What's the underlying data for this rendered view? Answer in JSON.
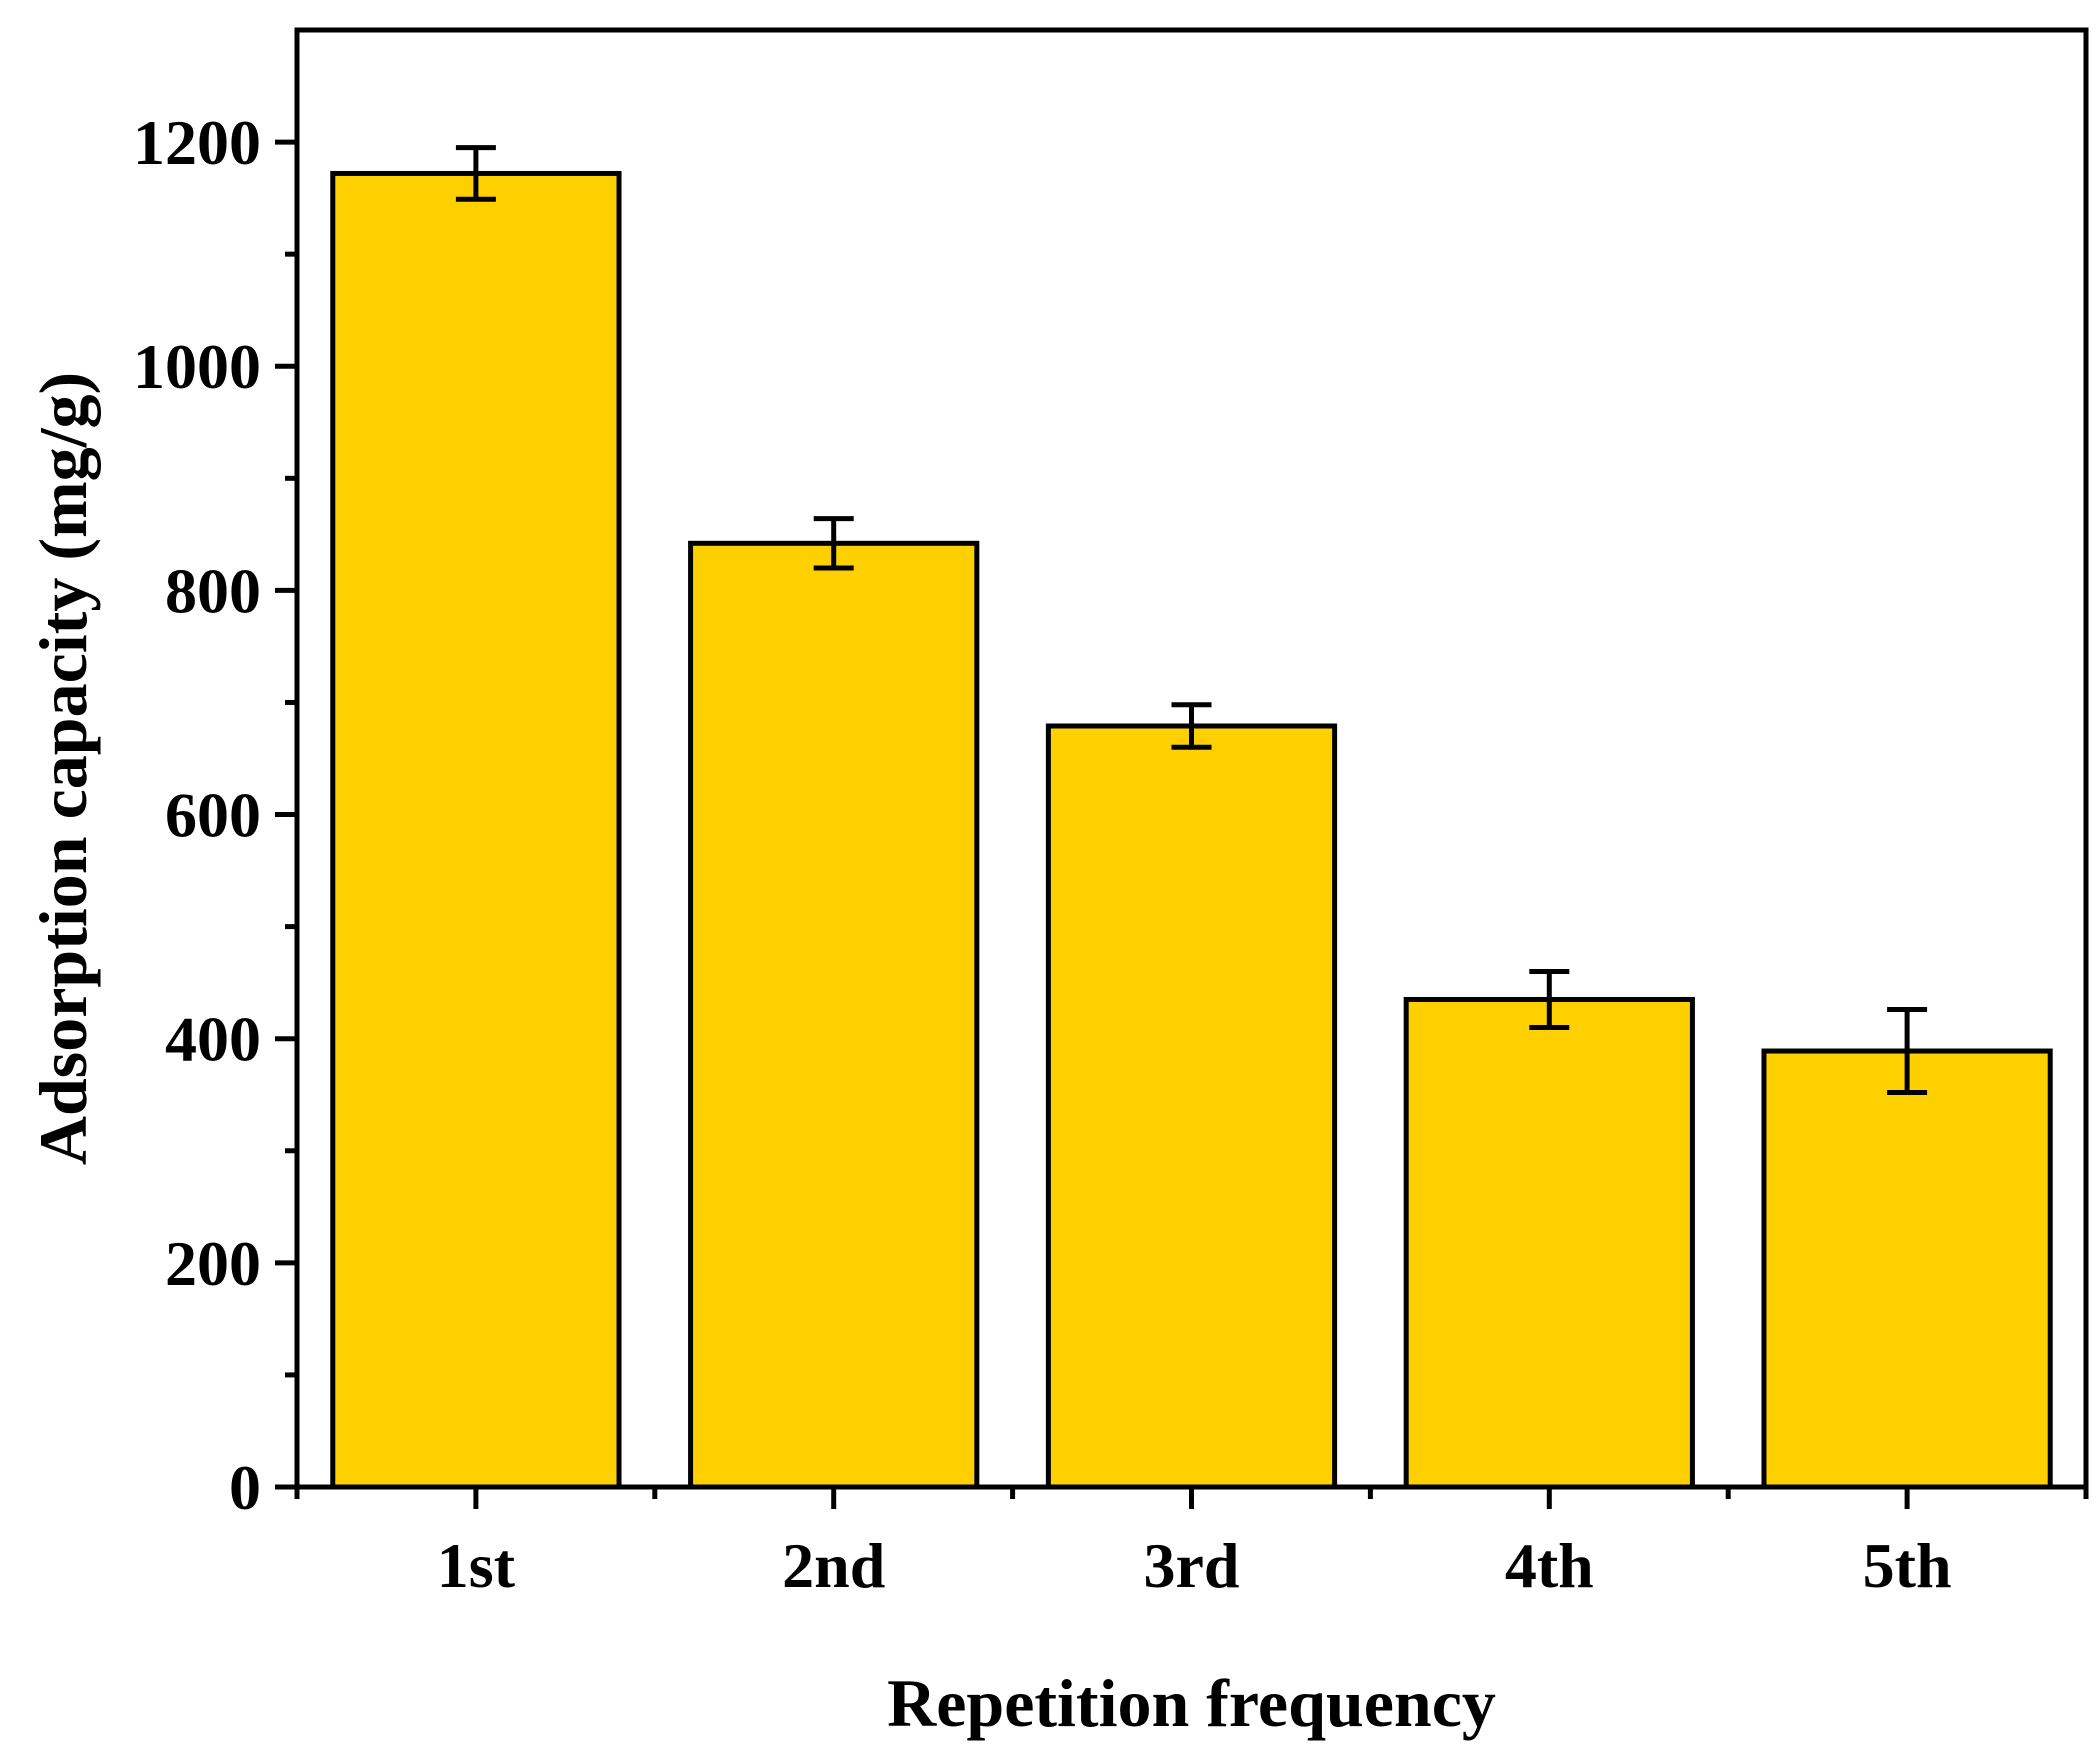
{
  "chart_data": {
    "type": "bar",
    "title": "",
    "xlabel": "Repetition frequency",
    "ylabel": "Adsorption capacity (mg/g)",
    "categories": [
      "1st",
      "2nd",
      "3rd",
      "4th",
      "5th"
    ],
    "values": [
      1172,
      842,
      679,
      435,
      389
    ],
    "errors": [
      23,
      22,
      19,
      25,
      37
    ],
    "ylim": [
      0,
      1300
    ],
    "yticks": [
      0,
      200,
      400,
      600,
      800,
      1000,
      1200
    ],
    "ytick_labels": [
      "0",
      "200",
      "400",
      "600",
      "800",
      "1000",
      "1200"
    ],
    "y_minor_step": 100,
    "grid": false,
    "legend": "none",
    "bar_color": "#FFD000",
    "edge_color": "#000000"
  }
}
